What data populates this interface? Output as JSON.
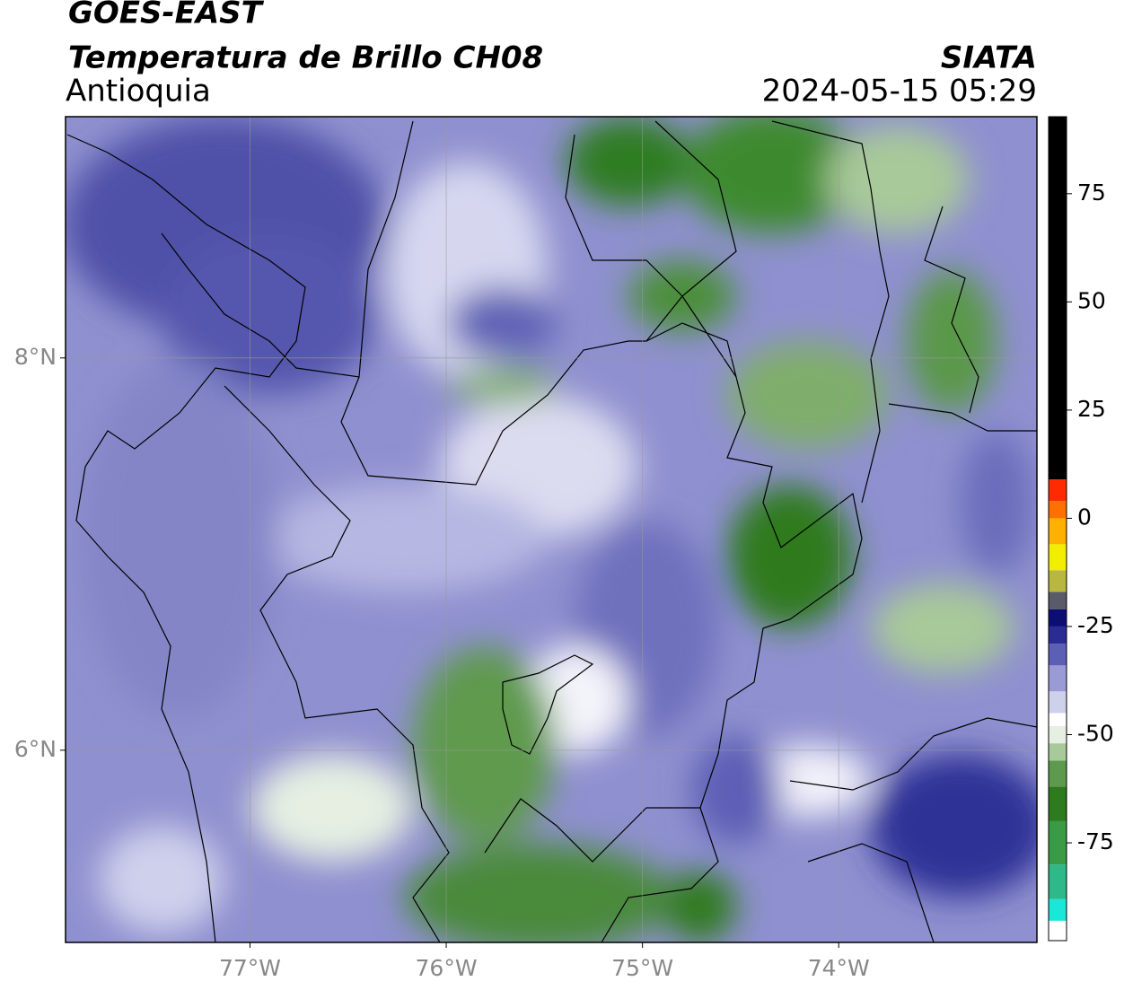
{
  "chart_data": {
    "type": "map",
    "title": "GOES-EAST",
    "subtitle": "Temperatura de Brillo CH08",
    "region": "Antioquia",
    "source": "SIATA",
    "timestamp": "2024-05-15 05:29",
    "xlim": [
      -77.94,
      -72.99
    ],
    "ylim": [
      5.02,
      9.23
    ],
    "xticks": [
      {
        "value": -77,
        "label": "77°W"
      },
      {
        "value": -76,
        "label": "76°W"
      },
      {
        "value": -75,
        "label": "75°W"
      },
      {
        "value": -74,
        "label": "74°W"
      }
    ],
    "yticks": [
      {
        "value": 6,
        "label": "6°N"
      },
      {
        "value": 8,
        "label": "8°N"
      }
    ],
    "grid": true,
    "colorbar": {
      "lim": [
        -97.6,
        92.8
      ],
      "ticks": [
        75,
        50,
        25,
        0,
        -25,
        -50,
        -75
      ],
      "colormap": [
        {
          "value": -97.6,
          "color": "#ffffff"
        },
        {
          "value": -93,
          "color": "#19e8d8"
        },
        {
          "value": -88,
          "color": "#2fb88a"
        },
        {
          "value": -80,
          "color": "#3a9a45"
        },
        {
          "value": -70,
          "color": "#2e7a1e"
        },
        {
          "value": -62,
          "color": "#5e9a4e"
        },
        {
          "value": -56,
          "color": "#a8c99a"
        },
        {
          "value": -52,
          "color": "#e6efe2"
        },
        {
          "value": -48,
          "color": "#ffffff"
        },
        {
          "value": -45,
          "color": "#cfd0ec"
        },
        {
          "value": -40,
          "color": "#9a9bd5"
        },
        {
          "value": -34,
          "color": "#5d5fb5"
        },
        {
          "value": -29,
          "color": "#2a2c93"
        },
        {
          "value": -25,
          "color": "#0c0e72"
        },
        {
          "value": -21,
          "color": "#5a5a6a"
        },
        {
          "value": -17,
          "color": "#b8b840"
        },
        {
          "value": -12,
          "color": "#f2ee00"
        },
        {
          "value": -6,
          "color": "#ffb000"
        },
        {
          "value": 0,
          "color": "#ff7000"
        },
        {
          "value": 4,
          "color": "#ff2a00"
        },
        {
          "value": 9,
          "color": "#000000"
        }
      ]
    }
  }
}
